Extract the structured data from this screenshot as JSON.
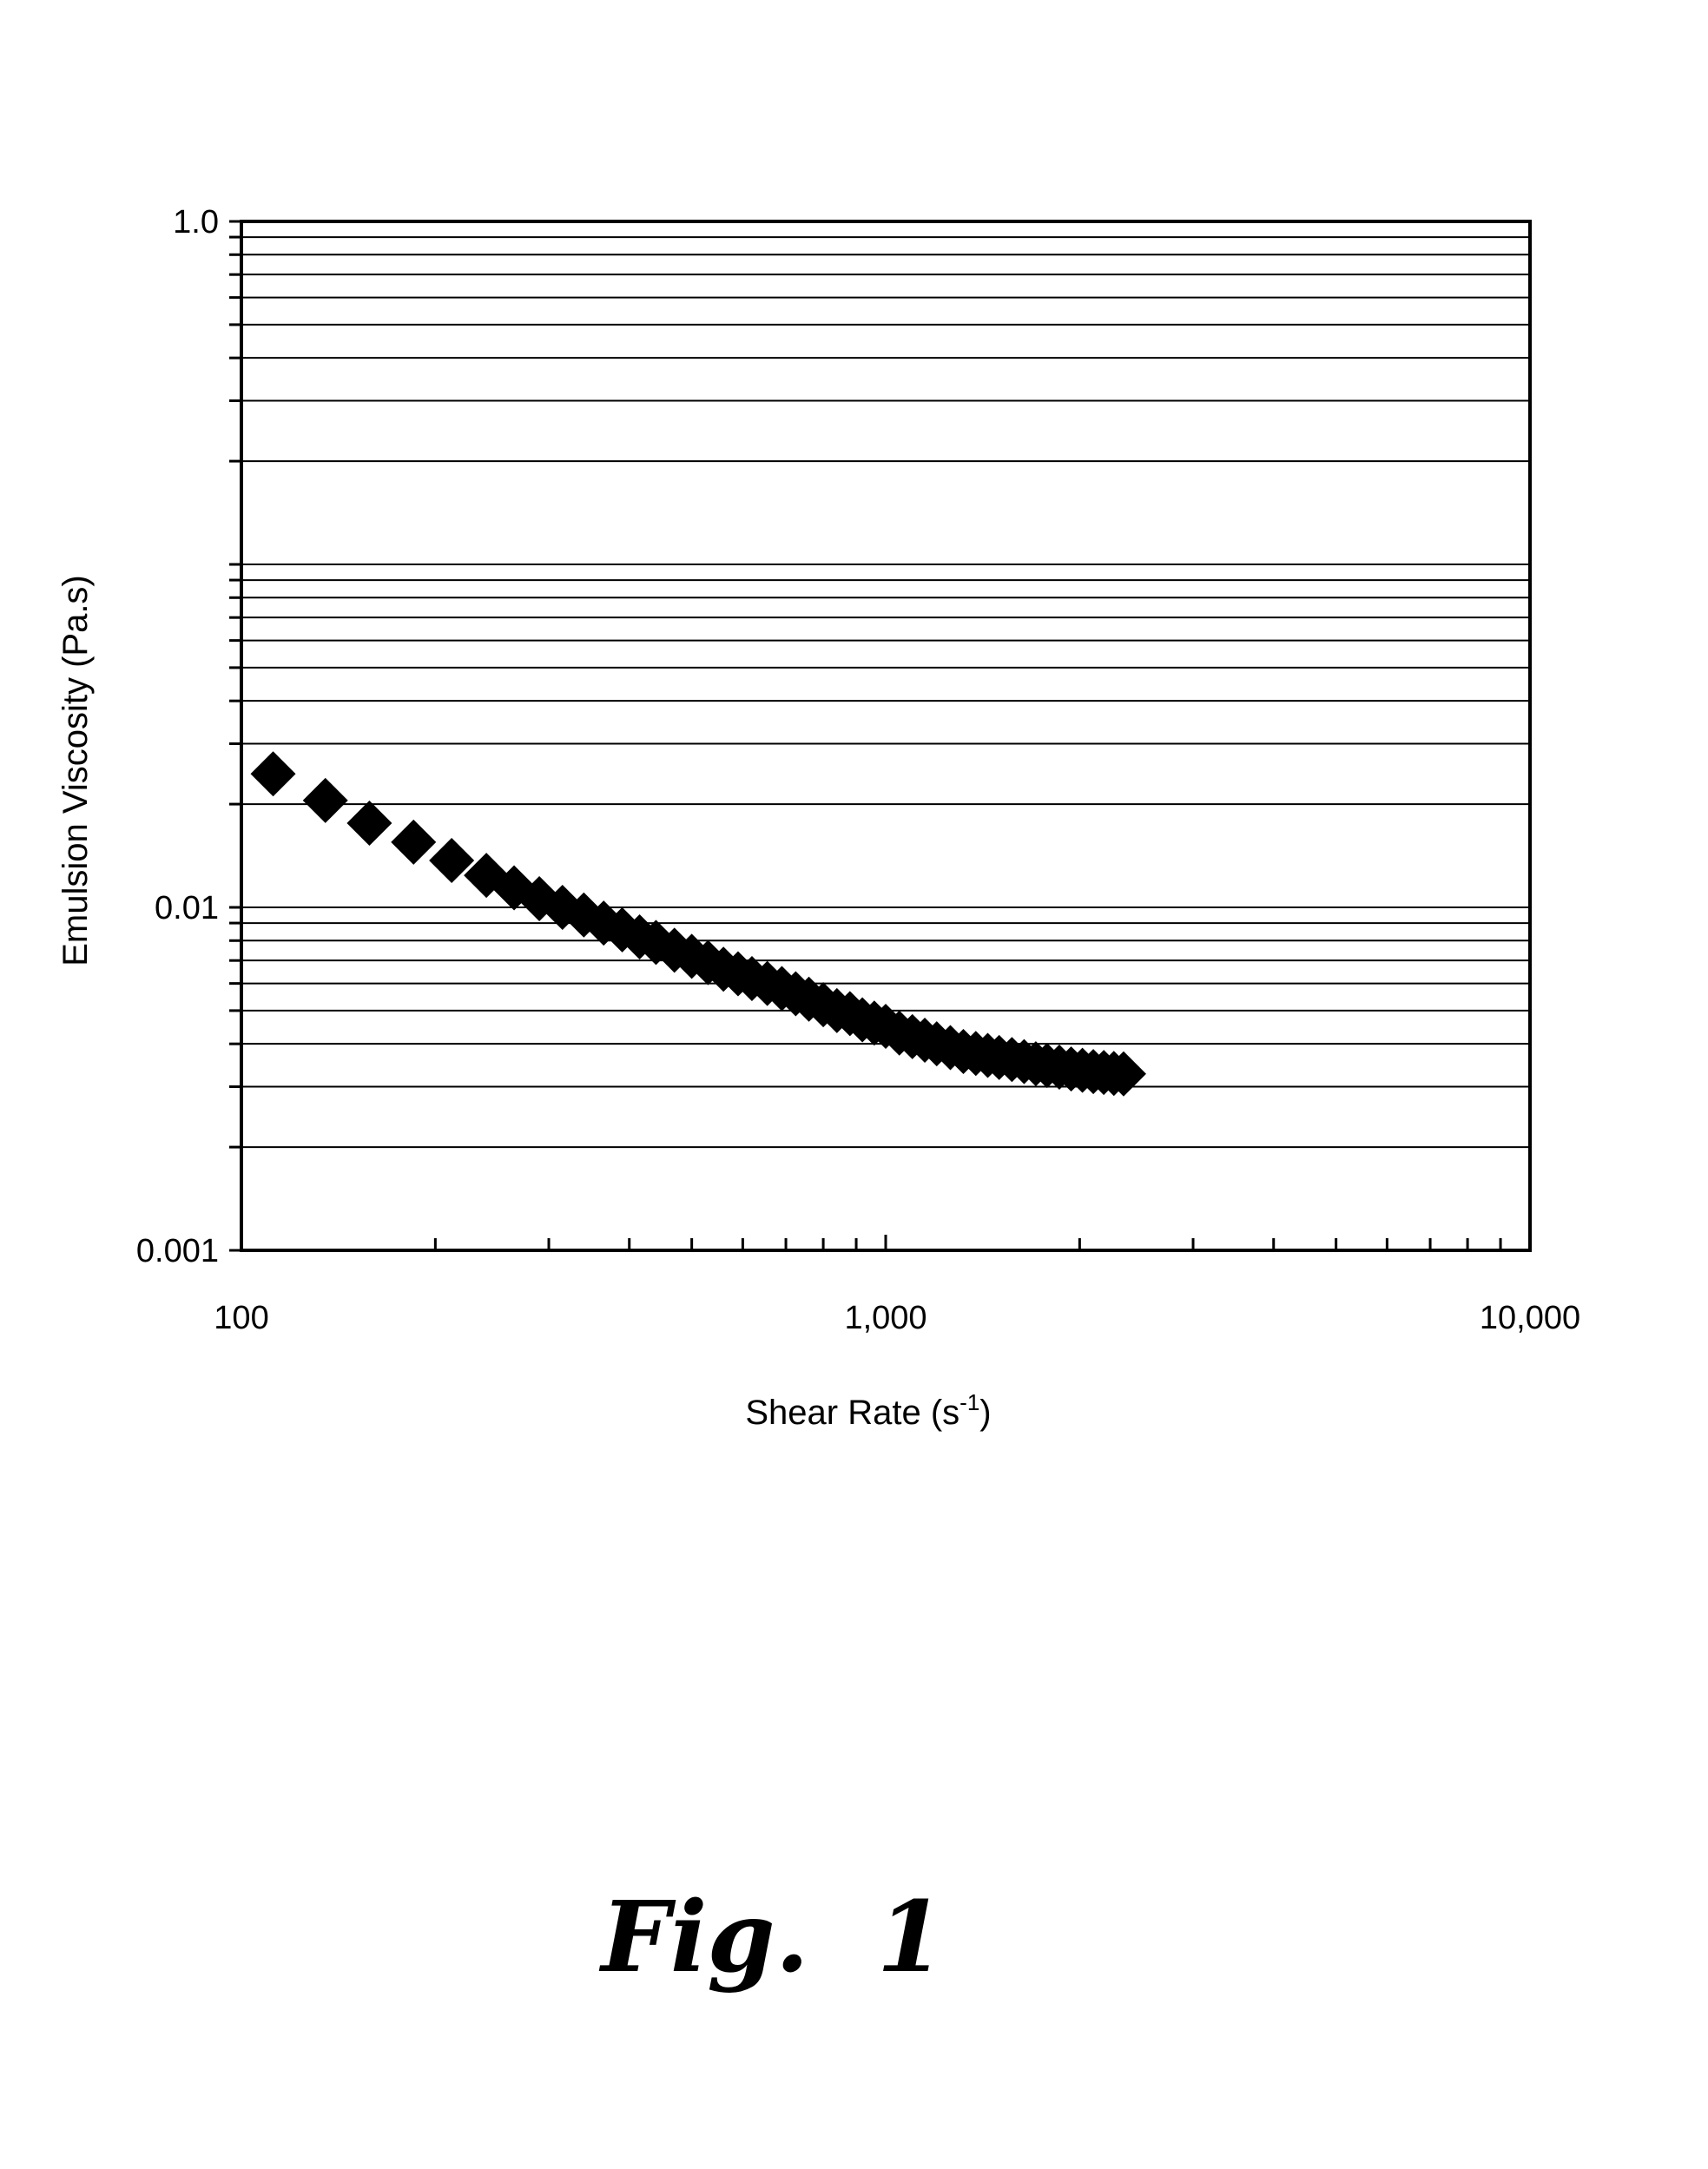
{
  "chart_data": {
    "type": "scatter",
    "title": "",
    "xlabel": "Shear Rate (s",
    "xlabel_sup": "-1",
    "xlabel_end": ")",
    "ylabel": "Emulsion Viscosity (Pa.s)",
    "x_scale": "log",
    "y_scale": "log",
    "xlim": [
      100,
      10000
    ],
    "ylim": [
      0.001,
      1.0
    ],
    "x_tick_labels": [
      "100",
      "1,000",
      "10,000"
    ],
    "y_tick_labels": [
      "0.001",
      "0.01",
      "1.0"
    ],
    "grid": "horizontal",
    "legend": "none",
    "marker": "diamond",
    "marker_color": "#000000",
    "series": [
      {
        "x": [
          112,
          135,
          158,
          185,
          212,
          240,
          265,
          290,
          315,
          340,
          365,
          390,
          415,
          440,
          470,
          500,
          530,
          560,
          590,
          620,
          655,
          690,
          725,
          760,
          800,
          840,
          880,
          920,
          960,
          1000,
          1050,
          1100,
          1150,
          1200,
          1260,
          1320,
          1380,
          1440,
          1500,
          1570,
          1640,
          1710,
          1780,
          1860,
          1940,
          2020,
          2100,
          2180,
          2260,
          2340
        ],
        "y": [
          0.0245,
          0.0205,
          0.0176,
          0.0155,
          0.0137,
          0.0124,
          0.0114,
          0.0106,
          0.01,
          0.0095,
          0.009,
          0.0086,
          0.0082,
          0.0079,
          0.0075,
          0.0072,
          0.0069,
          0.0066,
          0.0064,
          0.0062,
          0.006,
          0.0058,
          0.0056,
          0.0054,
          0.0052,
          0.005,
          0.0049,
          0.0047,
          0.0046,
          0.0045,
          0.0043,
          0.0042,
          0.0041,
          0.004,
          0.0039,
          0.0038,
          0.00375,
          0.0037,
          0.00365,
          0.0036,
          0.00355,
          0.0035,
          0.00346,
          0.00342,
          0.00338,
          0.00335,
          0.00332,
          0.0033,
          0.00328,
          0.00327
        ]
      }
    ]
  },
  "caption": "Fig.  1"
}
